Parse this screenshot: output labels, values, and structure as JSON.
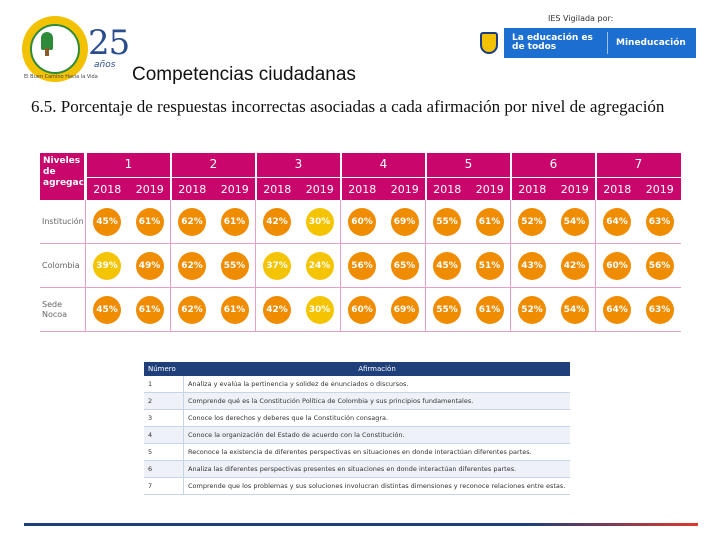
{
  "header": {
    "seal_caption": "El Buen Camino Hacia la Vida",
    "anniversary_number": "25",
    "anniversary_word": "años",
    "vigilada": "IES Vigilada por:",
    "banner_main": "La educación es de todos",
    "banner_ministry": "Mineducación"
  },
  "title": "Competencias ciudadanas",
  "subtitle": "6.5. Porcentaje de respuestas incorrectas asociadas a cada afirmación por nivel de agregación",
  "table": {
    "rowhead_label": "Niveles de agregación",
    "groups": [
      "1",
      "2",
      "3",
      "4",
      "5",
      "6",
      "7"
    ],
    "years": [
      "2018",
      "2019"
    ],
    "rows": [
      {
        "label": "Institución",
        "values": [
          "45%",
          "61%",
          "62%",
          "61%",
          "42%",
          "30%",
          "60%",
          "69%",
          "55%",
          "61%",
          "52%",
          "54%",
          "64%",
          "63%"
        ]
      },
      {
        "label": "Colombia",
        "values": [
          "39%",
          "49%",
          "62%",
          "55%",
          "37%",
          "24%",
          "56%",
          "65%",
          "45%",
          "51%",
          "43%",
          "42%",
          "60%",
          "56%"
        ]
      },
      {
        "label": "Sede Nocoa",
        "values": [
          "45%",
          "61%",
          "62%",
          "61%",
          "42%",
          "30%",
          "60%",
          "69%",
          "55%",
          "61%",
          "52%",
          "54%",
          "64%",
          "63%"
        ]
      }
    ],
    "colors": {
      "header": "#c9066c",
      "orange": "#f08c00",
      "yellow": "#f5c400"
    }
  },
  "affirmations": {
    "header_num": "Número",
    "header_text": "Afirmación",
    "items": [
      {
        "num": "1",
        "text": "Analiza y evalúa la pertinencia y solidez de enunciados o discursos."
      },
      {
        "num": "2",
        "text": "Comprende qué es la Constitución Política de Colombia y sus principios fundamentales."
      },
      {
        "num": "3",
        "text": "Conoce los derechos y deberes que la Constitución consagra."
      },
      {
        "num": "4",
        "text": "Conoce la organización del Estado de acuerdo con la Constitución."
      },
      {
        "num": "5",
        "text": "Reconoce la existencia de diferentes perspectivas en situaciones en donde interactúan diferentes partes."
      },
      {
        "num": "6",
        "text": "Analiza las diferentes perspectivas presentes en situaciones en donde interactúan diferentes partes."
      },
      {
        "num": "7",
        "text": "Comprende que los problemas y sus soluciones involucran distintas dimensiones y reconoce relaciones entre estas."
      }
    ]
  }
}
